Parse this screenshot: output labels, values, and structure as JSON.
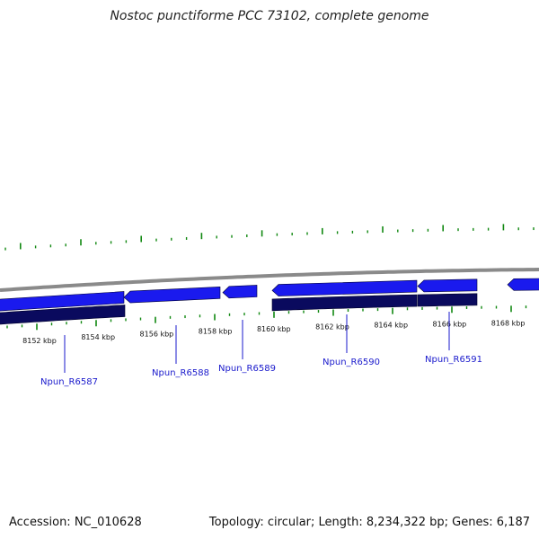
{
  "title": "Nostoc punctiforme PCC 73102, complete genome",
  "accession_text": "Accession: NC_010628",
  "summary_text": "Topology: circular; Length: 8,234,322 bp; Genes: 6,187",
  "colors": {
    "backbone": "#8a8a8a",
    "forward_gene": "#1a1aee",
    "reverse_gene": "#0a0a5e",
    "tick": "#118811",
    "label_line": "#1a1acc",
    "label_text": "#1a1acc"
  },
  "scale": {
    "unit": "kbp",
    "labels": [
      {
        "text": "8152 kbp",
        "kbp": 8152
      },
      {
        "text": "8154 kbp",
        "kbp": 8154
      },
      {
        "text": "8156 kbp",
        "kbp": 8156
      },
      {
        "text": "8158 kbp",
        "kbp": 8158
      },
      {
        "text": "8160 kbp",
        "kbp": 8160
      },
      {
        "text": "8162 kbp",
        "kbp": 8162
      },
      {
        "text": "8164 kbp",
        "kbp": 8164
      },
      {
        "text": "8166 kbp",
        "kbp": 8166
      },
      {
        "text": "8168 kbp",
        "kbp": 8168
      }
    ]
  },
  "genes": [
    {
      "label": "Npun_R6587",
      "strand": "forward"
    },
    {
      "label": "Npun_R6588",
      "strand": "forward"
    },
    {
      "label": "Npun_R6589",
      "strand": "forward"
    },
    {
      "label": "Npun_R6590",
      "strand": "forward"
    },
    {
      "label": "Npun_R6591",
      "strand": "forward"
    }
  ]
}
